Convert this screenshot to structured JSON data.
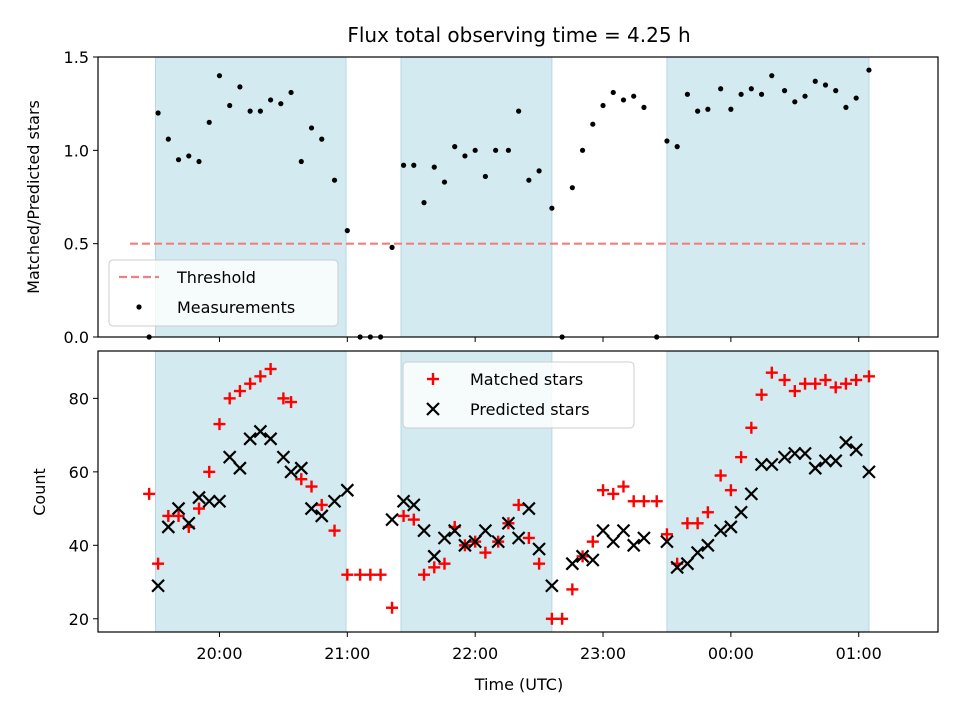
{
  "chart_data": [
    {
      "type": "scatter",
      "title": "Flux total observing time = 4.25 h",
      "xlabel": "",
      "ylabel": "Matched/Predicted stars",
      "ylim": [
        0,
        1.5
      ],
      "yticks": [
        "0.0",
        "0.5",
        "1.0",
        "1.5"
      ],
      "xlim_hours": [
        19.05,
        25.62
      ],
      "shaded_intervals_hours": [
        [
          19.5,
          20.99
        ],
        [
          21.42,
          22.6
        ],
        [
          23.5,
          25.08
        ]
      ],
      "shade_color": "#d3ebf0",
      "legend": {
        "placement": "lower-left",
        "entries": [
          "Threshold",
          "Measurements"
        ]
      },
      "series": [
        {
          "name": "Threshold",
          "kind": "dashed-line",
          "color": "#f08080",
          "x_hours": [
            19.3,
            25.05
          ],
          "y": [
            0.5,
            0.5
          ]
        },
        {
          "name": "Measurements",
          "kind": "points",
          "color": "#000000",
          "points": [
            [
              19.45,
              0.0
            ],
            [
              19.52,
              1.2
            ],
            [
              19.6,
              1.06
            ],
            [
              19.68,
              0.95
            ],
            [
              19.76,
              0.97
            ],
            [
              19.84,
              0.94
            ],
            [
              19.92,
              1.15
            ],
            [
              20.0,
              1.4
            ],
            [
              20.08,
              1.24
            ],
            [
              20.16,
              1.34
            ],
            [
              20.24,
              1.21
            ],
            [
              20.32,
              1.21
            ],
            [
              20.4,
              1.27
            ],
            [
              20.48,
              1.25
            ],
            [
              20.56,
              1.31
            ],
            [
              20.64,
              0.94
            ],
            [
              20.72,
              1.12
            ],
            [
              20.8,
              1.06
            ],
            [
              20.9,
              0.84
            ],
            [
              21.0,
              0.57
            ],
            [
              21.1,
              0.0
            ],
            [
              21.18,
              0.0
            ],
            [
              21.26,
              0.0
            ],
            [
              21.35,
              0.48
            ],
            [
              21.44,
              0.92
            ],
            [
              21.52,
              0.92
            ],
            [
              21.6,
              0.72
            ],
            [
              21.68,
              0.91
            ],
            [
              21.76,
              0.83
            ],
            [
              21.84,
              1.02
            ],
            [
              21.92,
              0.97
            ],
            [
              22.0,
              1.0
            ],
            [
              22.08,
              0.86
            ],
            [
              22.16,
              1.0
            ],
            [
              22.26,
              1.0
            ],
            [
              22.34,
              1.21
            ],
            [
              22.42,
              0.84
            ],
            [
              22.5,
              0.89
            ],
            [
              22.6,
              0.69
            ],
            [
              22.68,
              0.0
            ],
            [
              22.76,
              0.8
            ],
            [
              22.84,
              1.0
            ],
            [
              22.92,
              1.14
            ],
            [
              23.0,
              1.24
            ],
            [
              23.08,
              1.31
            ],
            [
              23.16,
              1.27
            ],
            [
              23.24,
              1.29
            ],
            [
              23.32,
              1.23
            ],
            [
              23.42,
              0.0
            ],
            [
              23.5,
              1.05
            ],
            [
              23.58,
              1.02
            ],
            [
              23.66,
              1.3
            ],
            [
              23.74,
              1.21
            ],
            [
              23.82,
              1.22
            ],
            [
              23.92,
              1.33
            ],
            [
              24.0,
              1.22
            ],
            [
              24.08,
              1.3
            ],
            [
              24.16,
              1.33
            ],
            [
              24.24,
              1.3
            ],
            [
              24.32,
              1.4
            ],
            [
              24.42,
              1.32
            ],
            [
              24.5,
              1.26
            ],
            [
              24.58,
              1.29
            ],
            [
              24.66,
              1.37
            ],
            [
              24.74,
              1.35
            ],
            [
              24.82,
              1.32
            ],
            [
              24.9,
              1.23
            ],
            [
              24.98,
              1.28
            ],
            [
              25.08,
              1.43
            ]
          ]
        }
      ]
    },
    {
      "type": "scatter",
      "title": "",
      "xlabel": "Time (UTC)",
      "ylabel": "Count",
      "ylim": [
        16.4,
        92.9
      ],
      "yticks": [
        "20",
        "40",
        "60",
        "80"
      ],
      "xlim_hours": [
        19.05,
        25.62
      ],
      "xticks": [
        {
          "hours": 20,
          "label": "20:00"
        },
        {
          "hours": 21,
          "label": "21:00"
        },
        {
          "hours": 22,
          "label": "22:00"
        },
        {
          "hours": 23,
          "label": "23:00"
        },
        {
          "hours": 24,
          "label": "00:00"
        },
        {
          "hours": 25,
          "label": "01:00"
        }
      ],
      "shaded_intervals_hours": [
        [
          19.5,
          20.99
        ],
        [
          21.42,
          22.6
        ],
        [
          23.5,
          25.08
        ]
      ],
      "shade_color": "#d3ebf0",
      "legend": {
        "placement": "upper-center",
        "entries": [
          "Matched stars",
          "Predicted stars"
        ]
      },
      "series": [
        {
          "name": "Matched stars",
          "marker": "plus",
          "color": "#ff0000",
          "points": [
            [
              19.45,
              54
            ],
            [
              19.52,
              35
            ],
            [
              19.6,
              48
            ],
            [
              19.68,
              48
            ],
            [
              19.76,
              45
            ],
            [
              19.84,
              50
            ],
            [
              19.92,
              60
            ],
            [
              20.0,
              73
            ],
            [
              20.08,
              80
            ],
            [
              20.16,
              82
            ],
            [
              20.24,
              84
            ],
            [
              20.32,
              86
            ],
            [
              20.4,
              88
            ],
            [
              20.5,
              80
            ],
            [
              20.56,
              79
            ],
            [
              20.64,
              58
            ],
            [
              20.72,
              56
            ],
            [
              20.8,
              51
            ],
            [
              20.9,
              44
            ],
            [
              21.0,
              32
            ],
            [
              21.1,
              32
            ],
            [
              21.18,
              32
            ],
            [
              21.26,
              32
            ],
            [
              21.35,
              23
            ],
            [
              21.44,
              48
            ],
            [
              21.52,
              47
            ],
            [
              21.6,
              32
            ],
            [
              21.68,
              34
            ],
            [
              21.76,
              35
            ],
            [
              21.84,
              45
            ],
            [
              21.92,
              40
            ],
            [
              22.0,
              41
            ],
            [
              22.08,
              38
            ],
            [
              22.18,
              41
            ],
            [
              22.26,
              46
            ],
            [
              22.34,
              51
            ],
            [
              22.42,
              42
            ],
            [
              22.5,
              35
            ],
            [
              22.6,
              20
            ],
            [
              22.68,
              20
            ],
            [
              22.76,
              28
            ],
            [
              22.84,
              37
            ],
            [
              22.92,
              41
            ],
            [
              23.0,
              55
            ],
            [
              23.08,
              54
            ],
            [
              23.16,
              56
            ],
            [
              23.24,
              52
            ],
            [
              23.32,
              52
            ],
            [
              23.42,
              52
            ],
            [
              23.5,
              43
            ],
            [
              23.58,
              35
            ],
            [
              23.66,
              46
            ],
            [
              23.74,
              46
            ],
            [
              23.82,
              49
            ],
            [
              23.92,
              59
            ],
            [
              24.0,
              55
            ],
            [
              24.08,
              64
            ],
            [
              24.16,
              72
            ],
            [
              24.24,
              81
            ],
            [
              24.32,
              87
            ],
            [
              24.42,
              85
            ],
            [
              24.5,
              82
            ],
            [
              24.58,
              84
            ],
            [
              24.66,
              84
            ],
            [
              24.74,
              85
            ],
            [
              24.82,
              83
            ],
            [
              24.9,
              84
            ],
            [
              24.98,
              85
            ],
            [
              25.08,
              86
            ]
          ]
        },
        {
          "name": "Predicted stars",
          "marker": "x",
          "color": "#000000",
          "points": [
            [
              19.52,
              29
            ],
            [
              19.6,
              45
            ],
            [
              19.68,
              50
            ],
            [
              19.76,
              46
            ],
            [
              19.84,
              53
            ],
            [
              19.92,
              52
            ],
            [
              20.0,
              52
            ],
            [
              20.08,
              64
            ],
            [
              20.16,
              61
            ],
            [
              20.24,
              69
            ],
            [
              20.32,
              71
            ],
            [
              20.4,
              69
            ],
            [
              20.5,
              64
            ],
            [
              20.56,
              60
            ],
            [
              20.64,
              61
            ],
            [
              20.72,
              50
            ],
            [
              20.8,
              48
            ],
            [
              20.9,
              52
            ],
            [
              21.0,
              55
            ],
            [
              21.35,
              47
            ],
            [
              21.44,
              52
            ],
            [
              21.52,
              51
            ],
            [
              21.6,
              44
            ],
            [
              21.68,
              37
            ],
            [
              21.76,
              42
            ],
            [
              21.84,
              44
            ],
            [
              21.92,
              40
            ],
            [
              22.0,
              41
            ],
            [
              22.08,
              44
            ],
            [
              22.18,
              41
            ],
            [
              22.26,
              46
            ],
            [
              22.34,
              42
            ],
            [
              22.42,
              50
            ],
            [
              22.5,
              39
            ],
            [
              22.6,
              29
            ],
            [
              22.76,
              35
            ],
            [
              22.84,
              37
            ],
            [
              22.92,
              36
            ],
            [
              23.0,
              44
            ],
            [
              23.08,
              41
            ],
            [
              23.16,
              44
            ],
            [
              23.24,
              40
            ],
            [
              23.32,
              42
            ],
            [
              23.5,
              41
            ],
            [
              23.58,
              34
            ],
            [
              23.66,
              35
            ],
            [
              23.74,
              38
            ],
            [
              23.82,
              40
            ],
            [
              23.92,
              44
            ],
            [
              24.0,
              45
            ],
            [
              24.08,
              49
            ],
            [
              24.16,
              54
            ],
            [
              24.24,
              62
            ],
            [
              24.32,
              62
            ],
            [
              24.42,
              64
            ],
            [
              24.5,
              65
            ],
            [
              24.58,
              65
            ],
            [
              24.66,
              61
            ],
            [
              24.74,
              63
            ],
            [
              24.82,
              63
            ],
            [
              24.9,
              68
            ],
            [
              24.98,
              66
            ],
            [
              25.08,
              60
            ]
          ]
        }
      ]
    }
  ]
}
